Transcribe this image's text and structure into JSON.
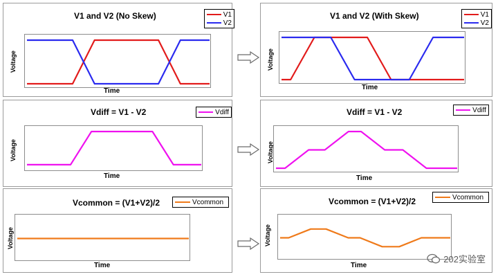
{
  "colors": {
    "v1": "#e21b1b",
    "v2": "#2a2aef",
    "vdiff": "#ef11ef",
    "vcommon": "#ef7a1a"
  },
  "watermark": "202实验室",
  "chart_data": [
    {
      "id": "v1v2_noskew",
      "type": "line",
      "title": "V1 and V2 (No Skew)",
      "xlabel": "Time",
      "ylabel": "Voltage",
      "ylim": [
        0,
        1
      ],
      "xlim": [
        0,
        100
      ],
      "series": [
        {
          "name": "V1",
          "color_key": "v1",
          "x": [
            0,
            25,
            37,
            72,
            84,
            100
          ],
          "values": [
            0,
            0,
            1,
            1,
            0,
            0
          ]
        },
        {
          "name": "V2",
          "color_key": "v2",
          "x": [
            0,
            25,
            37,
            72,
            84,
            100
          ],
          "values": [
            1,
            1,
            0,
            0,
            1,
            1
          ]
        }
      ]
    },
    {
      "id": "v1v2_skew",
      "type": "line",
      "title": "V1 and V2 (With Skew)",
      "xlabel": "Time",
      "ylabel": "Voltage",
      "ylim": [
        0,
        1
      ],
      "xlim": [
        0,
        100
      ],
      "series": [
        {
          "name": "V1",
          "color_key": "v1",
          "x": [
            0,
            5,
            18,
            47,
            60,
            100
          ],
          "values": [
            0,
            0,
            1,
            1,
            0,
            0
          ]
        },
        {
          "name": "V2",
          "color_key": "v2",
          "x": [
            0,
            27,
            40,
            70,
            83,
            100
          ],
          "values": [
            1,
            1,
            0,
            0,
            1,
            1
          ]
        }
      ]
    },
    {
      "id": "vdiff_noskew",
      "type": "line",
      "title": "Vdiff = V1 - V2",
      "xlabel": "Time",
      "ylabel": "Voltage",
      "ylim": [
        0,
        1
      ],
      "xlim": [
        0,
        100
      ],
      "series": [
        {
          "name": "Vdiff",
          "color_key": "vdiff",
          "x": [
            0,
            25,
            37,
            72,
            84,
            100
          ],
          "values": [
            0.06,
            0.06,
            1,
            1,
            0.06,
            0.06
          ]
        }
      ]
    },
    {
      "id": "vdiff_skew",
      "type": "line",
      "title": "Vdiff = V1 - V2",
      "xlabel": "Time",
      "ylabel": "Voltage",
      "ylim": [
        0,
        1
      ],
      "xlim": [
        0,
        100
      ],
      "series": [
        {
          "name": "Vdiff",
          "color_key": "vdiff",
          "x": [
            0,
            5,
            18,
            27,
            40,
            47,
            60,
            70,
            83,
            100
          ],
          "values": [
            0,
            0,
            0.5,
            0.5,
            1,
            1,
            0.5,
            0.5,
            0,
            0
          ]
        }
      ]
    },
    {
      "id": "vcommon_noskew",
      "type": "line",
      "title": "Vcommon = (V1+V2)/2",
      "xlabel": "Time",
      "ylabel": "Voltage",
      "ylim": [
        0,
        1
      ],
      "xlim": [
        0,
        100
      ],
      "series": [
        {
          "name": "Vcommon",
          "color_key": "vcommon",
          "x": [
            0,
            100
          ],
          "values": [
            0.5,
            0.5
          ]
        }
      ]
    },
    {
      "id": "vcommon_skew",
      "type": "line",
      "title": "Vcommon = (V1+V2)/2",
      "xlabel": "Time",
      "ylabel": "Voltage",
      "ylim": [
        0,
        1
      ],
      "xlim": [
        0,
        100
      ],
      "series": [
        {
          "name": "Vcommon",
          "color_key": "vcommon",
          "x": [
            0,
            5,
            18,
            27,
            40,
            47,
            60,
            70,
            83,
            100
          ],
          "values": [
            0.5,
            0.5,
            0.75,
            0.75,
            0.5,
            0.5,
            0.25,
            0.25,
            0.5,
            0.5
          ]
        }
      ]
    }
  ]
}
